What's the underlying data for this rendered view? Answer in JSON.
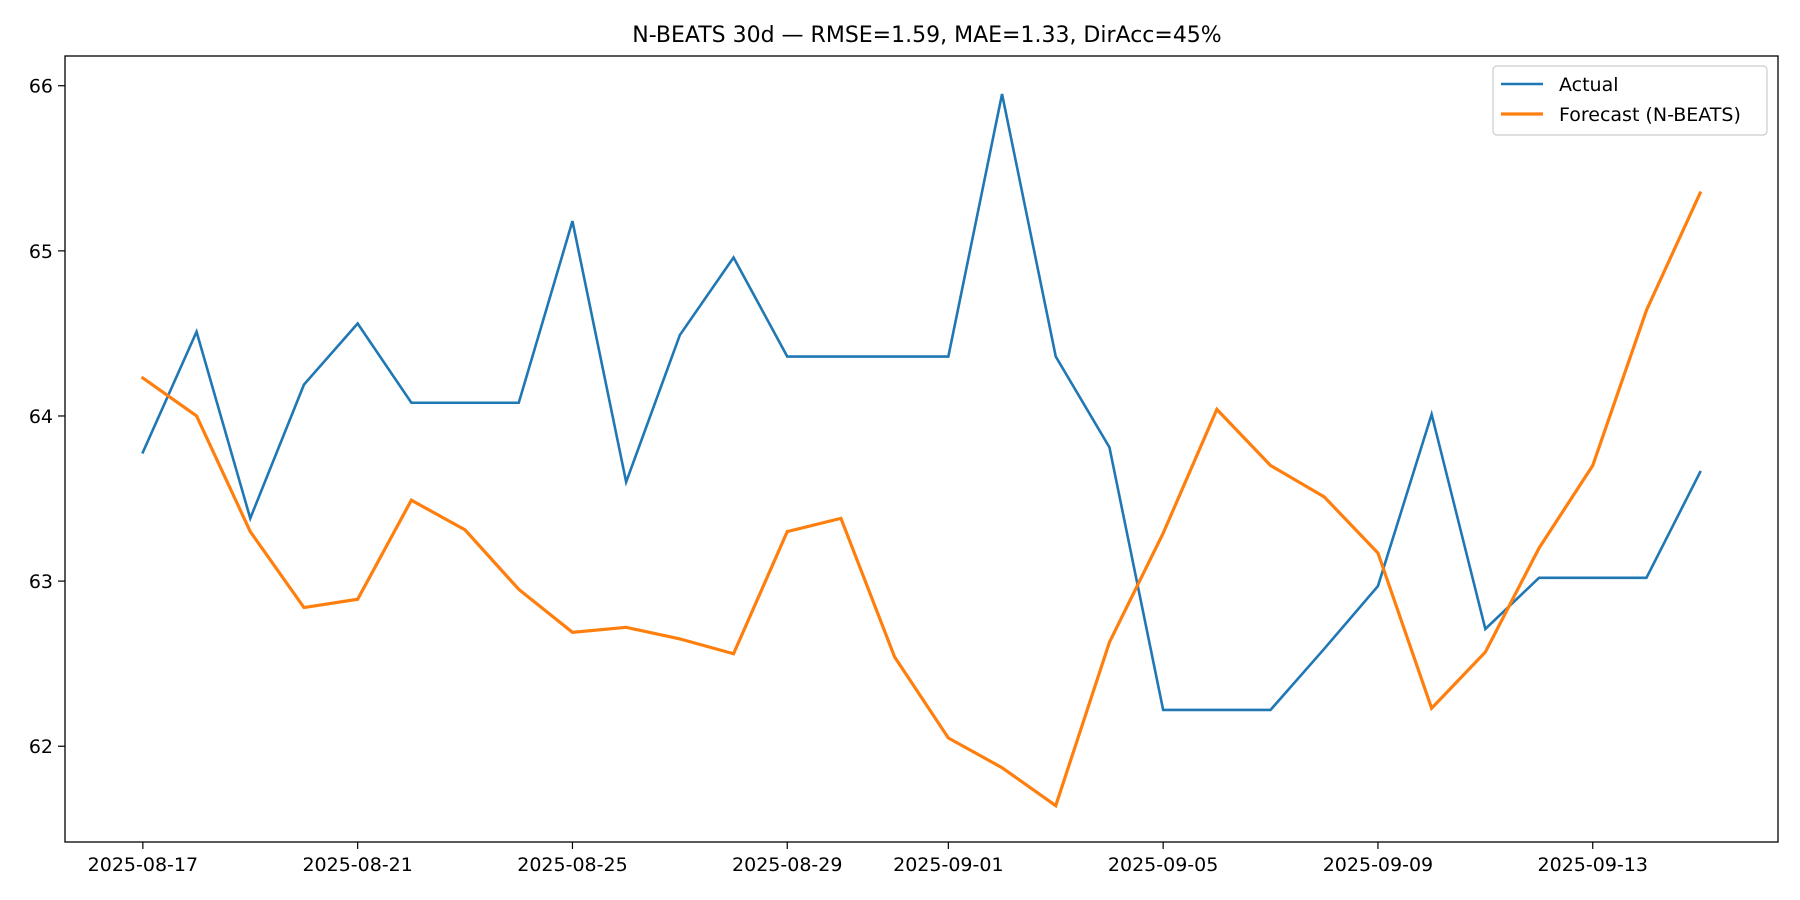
{
  "chart_data": {
    "type": "line",
    "title": "N-BEATS 30d — RMSE=1.59, MAE=1.33, DirAcc=45%",
    "xlabel": "",
    "ylabel": "",
    "x": [
      "2025-08-17",
      "2025-08-18",
      "2025-08-19",
      "2025-08-20",
      "2025-08-21",
      "2025-08-22",
      "2025-08-23",
      "2025-08-24",
      "2025-08-25",
      "2025-08-26",
      "2025-08-27",
      "2025-08-28",
      "2025-08-29",
      "2025-08-30",
      "2025-08-31",
      "2025-09-01",
      "2025-09-02",
      "2025-09-03",
      "2025-09-04",
      "2025-09-05",
      "2025-09-06",
      "2025-09-07",
      "2025-09-08",
      "2025-09-09",
      "2025-09-10",
      "2025-09-11",
      "2025-09-12",
      "2025-09-13",
      "2025-09-14",
      "2025-09-15"
    ],
    "x_ticks": [
      "2025-08-17",
      "2025-08-21",
      "2025-08-25",
      "2025-08-29",
      "2025-09-01",
      "2025-09-05",
      "2025-09-09",
      "2025-09-13"
    ],
    "xlim": [
      "2025-08-15.55",
      "2025-09-16.45"
    ],
    "y_ticks": [
      62,
      63,
      64,
      65,
      66
    ],
    "ylim": [
      61.42,
      66.18
    ],
    "grid": false,
    "legend_position": "top-right",
    "series": [
      {
        "name": "Actual",
        "color": "#1f77b4",
        "values": [
          63.78,
          64.51,
          63.38,
          64.19,
          64.56,
          64.08,
          64.08,
          64.08,
          65.18,
          63.6,
          64.49,
          64.96,
          64.36,
          64.36,
          64.36,
          64.36,
          65.95,
          64.36,
          63.81,
          62.22,
          62.22,
          62.22,
          62.59,
          62.97,
          64.01,
          62.71,
          63.02,
          63.02,
          63.02,
          63.66
        ]
      },
      {
        "name": "Forecast (N-BEATS)",
        "color": "#ff7f0e",
        "values": [
          64.23,
          64.0,
          63.3,
          62.84,
          62.89,
          63.49,
          63.31,
          62.95,
          62.69,
          62.72,
          62.65,
          62.56,
          63.3,
          63.38,
          62.54,
          62.05,
          61.87,
          61.64,
          62.63,
          63.29,
          64.04,
          63.7,
          63.51,
          63.17,
          62.23,
          62.57,
          63.2,
          63.7,
          64.64,
          65.35
        ]
      }
    ]
  }
}
